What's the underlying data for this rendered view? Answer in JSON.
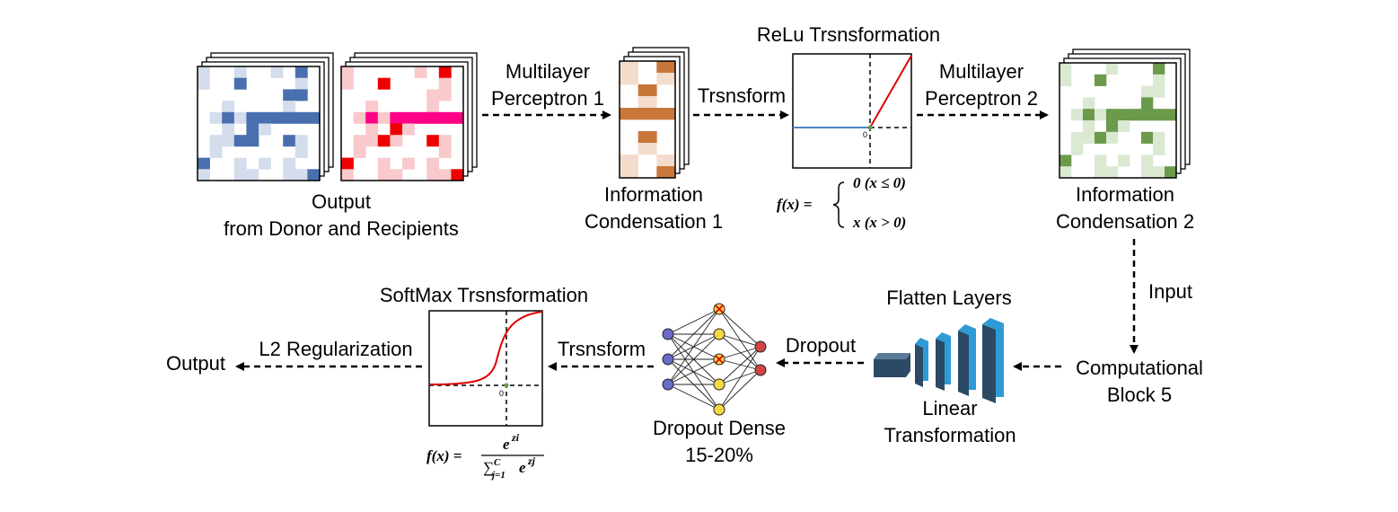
{
  "labels": {
    "mlp1": [
      "Multilayer",
      "Perceptron 1"
    ],
    "output_top": [
      "Output",
      "from Donor and Recipients"
    ],
    "trsnsform_top": "Trsnsform",
    "relu_title": "ReLu Trsnsformation",
    "mlp2": [
      "Multilayer",
      "Perceptron 2"
    ],
    "ic1": [
      "Information",
      "Condensation 1"
    ],
    "ic2": [
      "Information",
      "Condensation 2"
    ],
    "input": "Input",
    "comp_block": [
      "Computational",
      "Block 5"
    ],
    "flatten": "Flatten Layers",
    "linear": [
      "Linear",
      "Transformation"
    ],
    "dropout": "Dropout",
    "dropout_dense": [
      "Dropout Dense",
      "15-20%"
    ],
    "trsnsform_bottom": "Trsnsform",
    "softmax_title": "SoftMax Trsnsformation",
    "l2": "L2 Regularization",
    "output_final": "Output",
    "zero": "0"
  },
  "formulas": {
    "relu_lhs": "f(x) =",
    "relu_case1": "0 (x ≤ 0)",
    "relu_case2": "x (x > 0)",
    "softmax_lhs": "f(x) =",
    "softmax_num": "e",
    "softmax_num_sup": "zi",
    "softmax_den": "∑",
    "softmax_den_sub": "j=1",
    "softmax_den_sup": "C",
    "softmax_den_e": "e",
    "softmax_den_e_sup": "zj"
  },
  "colors": {
    "blue_dark": "#4a6fae",
    "blue_light": "#d4ddec",
    "red_dark": "#ee0000",
    "red_light": "#f9c9cb",
    "magenta": "#ff0086",
    "brown_dark": "#c8763a",
    "brown_light": "#f4dccc",
    "green_dark": "#6a9a4a",
    "green_light": "#dbe8d2",
    "relu_line": "#e00000",
    "relu_flat": "#4a86c6",
    "softmax_line": "#e00000",
    "node_purple": "#6a6ac8",
    "node_yellow": "#f5d742",
    "node_red": "#d24444",
    "layer_blue": "#2e9bd6",
    "layer_navy": "#2c4a66"
  },
  "icons": {
    "dropped_node": "x-mark-icon",
    "flatten": "cuboid-layers-icon"
  }
}
